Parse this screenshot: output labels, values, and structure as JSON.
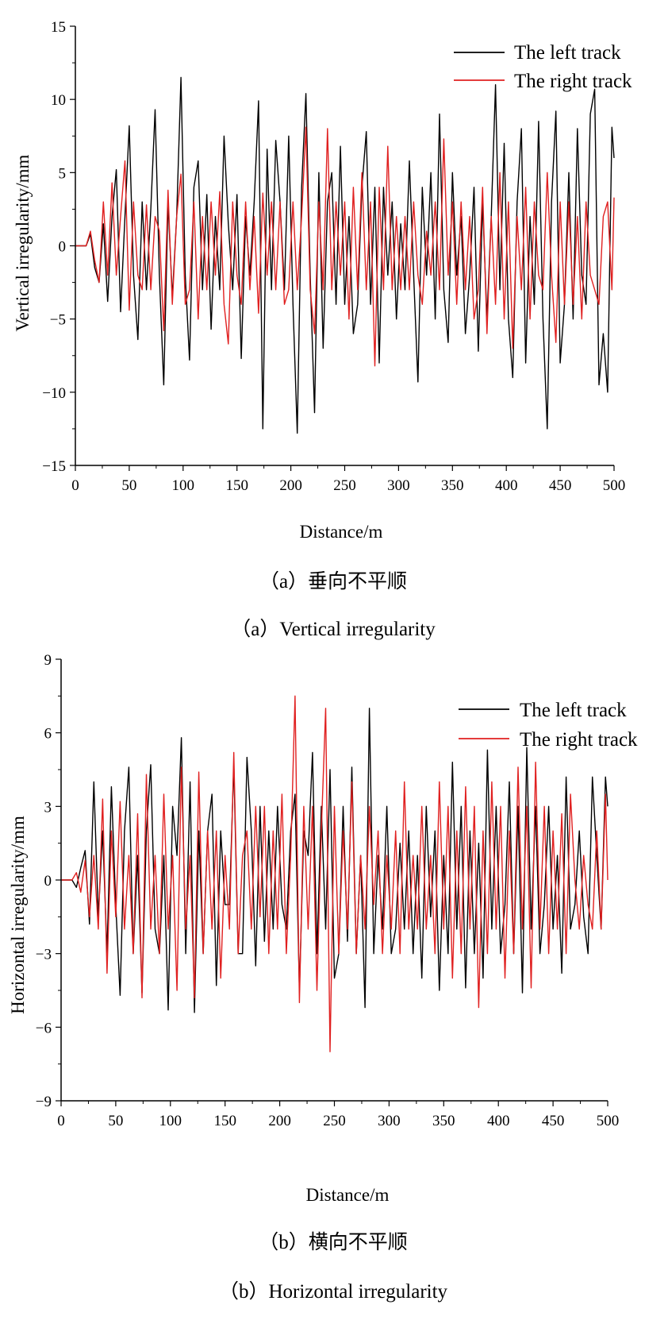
{
  "chart_data": [
    {
      "type": "line",
      "xlabel": "Distance/m",
      "ylabel": "Vertical irregularity/mm",
      "xlim": [
        0,
        500
      ],
      "ylim": [
        -15,
        15
      ],
      "xticks": [
        0,
        50,
        100,
        150,
        200,
        250,
        300,
        350,
        400,
        450,
        500
      ],
      "yticks": [
        -15,
        -10,
        -5,
        0,
        5,
        10,
        15
      ],
      "xtick_labels": [
        "0",
        "50",
        "100",
        "150",
        "200",
        "250",
        "300",
        "350",
        "400",
        "450",
        "500"
      ],
      "ytick_labels": [
        "−15",
        "−10",
        "−5",
        "0",
        "5",
        "10",
        "15"
      ],
      "grid": false,
      "legend_position": "top-right",
      "caption_cn": "（a）垂向不平顺",
      "caption_en": "（a）Vertical irregularity",
      "series": [
        {
          "name": "The left track",
          "color": "#000000",
          "x": [
            0,
            10,
            14,
            18,
            22,
            26,
            30,
            34,
            38,
            42,
            46,
            50,
            54,
            58,
            62,
            66,
            70,
            74,
            78,
            82,
            86,
            90,
            94,
            98,
            102,
            106,
            110,
            114,
            118,
            122,
            126,
            130,
            134,
            138,
            142,
            146,
            150,
            154,
            158,
            162,
            166,
            170,
            174,
            178,
            182,
            186,
            190,
            194,
            198,
            202,
            206,
            210,
            214,
            218,
            222,
            226,
            230,
            234,
            238,
            242,
            246,
            250,
            254,
            258,
            262,
            266,
            270,
            274,
            278,
            282,
            286,
            290,
            294,
            298,
            302,
            306,
            310,
            314,
            318,
            322,
            326,
            330,
            334,
            338,
            342,
            346,
            350,
            354,
            358,
            362,
            366,
            370,
            374,
            378,
            382,
            386,
            390,
            394,
            398,
            402,
            406,
            410,
            414,
            418,
            422,
            426,
            430,
            434,
            438,
            442,
            446,
            450,
            454,
            458,
            462,
            466,
            470,
            474,
            478,
            482,
            486,
            490,
            494,
            498,
            500
          ],
          "y": [
            0,
            0,
            0.8,
            -1.5,
            -2.5,
            1.5,
            -3.8,
            2,
            5.2,
            -4.5,
            2,
            8.2,
            -2,
            -6.4,
            3,
            -3,
            2.5,
            9.3,
            -2,
            -9.5,
            3,
            -3.5,
            2,
            11.5,
            -2,
            -7.8,
            4,
            5.8,
            -3,
            3.5,
            -5.7,
            2,
            -3,
            7.5,
            1.5,
            -3,
            3.5,
            -7.7,
            2,
            -2,
            3,
            9.9,
            -12.5,
            6.6,
            -3,
            7.2,
            3,
            -3,
            7.5,
            -4,
            -12.8,
            4,
            10.4,
            -2,
            -11.4,
            5,
            -7,
            3,
            5,
            -4,
            6.8,
            -4,
            2,
            -6,
            -4,
            4,
            7.8,
            -4,
            4,
            -8,
            4,
            -2,
            3,
            -5,
            1.5,
            -3,
            5.8,
            -2,
            -9.3,
            4,
            -2,
            5,
            -5,
            9,
            -3,
            -6.6,
            5,
            -2,
            2,
            -6,
            -2,
            4,
            -7.2,
            3,
            -5,
            2,
            11,
            -3,
            7,
            -5,
            -9,
            3,
            8,
            -8,
            2,
            -4,
            8.5,
            -5,
            -12.5,
            3,
            9.2,
            -8,
            -4,
            5,
            -5,
            8,
            -2,
            -4,
            9,
            10.7,
            -9.5,
            -6,
            -10,
            8.1,
            6
          ]
        },
        {
          "name": "The right track",
          "color": "#e02020",
          "x": [
            0,
            10,
            14,
            18,
            22,
            26,
            30,
            34,
            38,
            42,
            46,
            50,
            54,
            58,
            62,
            66,
            70,
            74,
            78,
            82,
            86,
            90,
            94,
            98,
            102,
            106,
            110,
            114,
            118,
            122,
            126,
            130,
            134,
            138,
            142,
            146,
            150,
            154,
            158,
            162,
            166,
            170,
            174,
            178,
            182,
            186,
            190,
            194,
            198,
            202,
            206,
            210,
            214,
            218,
            222,
            226,
            230,
            234,
            238,
            242,
            246,
            250,
            254,
            258,
            262,
            266,
            270,
            274,
            278,
            282,
            286,
            290,
            294,
            298,
            302,
            306,
            310,
            314,
            318,
            322,
            326,
            330,
            334,
            338,
            342,
            346,
            350,
            354,
            358,
            362,
            366,
            370,
            374,
            378,
            382,
            386,
            390,
            394,
            398,
            402,
            406,
            410,
            414,
            418,
            422,
            426,
            430,
            434,
            438,
            442,
            446,
            450,
            454,
            458,
            462,
            466,
            470,
            474,
            478,
            482,
            486,
            490,
            494,
            498,
            500
          ],
          "y": [
            0,
            0,
            1,
            -1,
            -2.5,
            3,
            -2,
            4.3,
            -2,
            2,
            5.8,
            -4.4,
            3,
            -2,
            -3,
            2.8,
            -3,
            2,
            1,
            -5.8,
            3.8,
            -4,
            2,
            4.9,
            -4,
            -3,
            3,
            -5,
            2,
            -3,
            3,
            -2,
            3.7,
            -4,
            -6.7,
            3,
            -2,
            -4,
            3,
            -3,
            2,
            -4.6,
            3.6,
            -2,
            3,
            -3,
            3,
            -4,
            -3,
            3,
            -3,
            2,
            8.1,
            -3,
            -6,
            3,
            -3,
            8,
            -3,
            3,
            -2,
            3,
            -5,
            4,
            -3,
            5,
            -3,
            3,
            -8.2,
            4,
            -3,
            6.8,
            -3,
            2,
            -3,
            2,
            -3,
            3,
            -2,
            -4,
            1,
            -2,
            3,
            -3,
            7.3,
            -2,
            3,
            -4,
            3,
            -3,
            2,
            -5,
            -3,
            4,
            -6,
            2,
            -4,
            5,
            -5,
            3,
            -7,
            2,
            -3,
            4,
            -5,
            3,
            -2,
            -3,
            5,
            -2,
            -6.6,
            3,
            -4,
            3,
            -4,
            2,
            -5,
            3,
            -2,
            -3,
            -4,
            2,
            3,
            -3,
            3.3
          ]
        }
      ]
    },
    {
      "type": "line",
      "xlabel": "Distance/m",
      "ylabel": "Horizontal irregularity/mm",
      "xlim": [
        0,
        500
      ],
      "ylim": [
        -9,
        9
      ],
      "xticks": [
        0,
        50,
        100,
        150,
        200,
        250,
        300,
        350,
        400,
        450,
        500
      ],
      "yticks": [
        -9,
        -6,
        -3,
        0,
        3,
        6,
        9
      ],
      "xtick_labels": [
        "0",
        "50",
        "100",
        "150",
        "200",
        "250",
        "300",
        "350",
        "400",
        "450",
        "500"
      ],
      "ytick_labels": [
        "−9",
        "−6",
        "−3",
        "0",
        "3",
        "6",
        "9"
      ],
      "grid": false,
      "legend_position": "top-right",
      "caption_cn": "（b）横向不平顺",
      "caption_en": "（b）Horizontal irregularity",
      "series": [
        {
          "name": "The left track",
          "color": "#000000",
          "x": [
            0,
            10,
            14,
            18,
            22,
            26,
            30,
            34,
            38,
            42,
            46,
            50,
            54,
            58,
            62,
            66,
            70,
            74,
            78,
            82,
            86,
            90,
            94,
            98,
            102,
            106,
            110,
            114,
            118,
            122,
            126,
            130,
            134,
            138,
            142,
            146,
            150,
            154,
            158,
            162,
            166,
            170,
            174,
            178,
            182,
            186,
            190,
            194,
            198,
            202,
            206,
            210,
            214,
            218,
            222,
            226,
            230,
            234,
            238,
            242,
            246,
            250,
            254,
            258,
            262,
            266,
            270,
            274,
            278,
            282,
            286,
            290,
            294,
            298,
            302,
            306,
            310,
            314,
            318,
            322,
            326,
            330,
            334,
            338,
            342,
            346,
            350,
            354,
            358,
            362,
            366,
            370,
            374,
            378,
            382,
            386,
            390,
            394,
            398,
            402,
            406,
            410,
            414,
            418,
            422,
            426,
            430,
            434,
            438,
            442,
            446,
            450,
            454,
            458,
            462,
            466,
            470,
            474,
            478,
            482,
            486,
            490,
            494,
            498,
            500
          ],
          "y": [
            0,
            0,
            -0.3,
            0.5,
            1.2,
            -1.8,
            4,
            -1.5,
            2,
            -3,
            3.8,
            -1,
            -4.7,
            2,
            4.6,
            -3,
            1,
            -4.6,
            2,
            4.7,
            -2,
            -3,
            1,
            -5.3,
            3,
            1,
            5.8,
            -3,
            4,
            -5.4,
            2,
            -3,
            2,
            3.5,
            -4.3,
            2,
            -1,
            -1,
            4.7,
            -3,
            -3,
            5,
            2,
            -3.5,
            3,
            -2.5,
            2,
            -2,
            3,
            -1,
            -2,
            2,
            3.5,
            -4.5,
            2,
            1,
            5.2,
            -3,
            3,
            -2,
            4.5,
            -4,
            -3,
            3,
            -2.5,
            4.6,
            -3,
            1,
            -5.2,
            7,
            -3,
            1,
            -2,
            3,
            -3,
            -2,
            1.5,
            -2,
            2,
            -3,
            1,
            -4,
            3,
            -1.5,
            2,
            -4.5,
            1,
            -3,
            4.8,
            -2,
            3,
            -4.4,
            2,
            -3,
            1.5,
            -4,
            5.3,
            -2,
            3,
            -3,
            -1,
            4,
            -3,
            3,
            -4.6,
            5.4,
            -2,
            3,
            -3,
            -1,
            3,
            -2,
            1,
            -3.8,
            4.2,
            -2,
            -1,
            2,
            -1.5,
            -3,
            4.2,
            1,
            -2,
            4.2,
            3
          ]
        },
        {
          "name": "The right track",
          "color": "#e02020",
          "x": [
            0,
            10,
            14,
            18,
            22,
            26,
            30,
            34,
            38,
            42,
            46,
            50,
            54,
            58,
            62,
            66,
            70,
            74,
            78,
            82,
            86,
            90,
            94,
            98,
            102,
            106,
            110,
            114,
            118,
            122,
            126,
            130,
            134,
            138,
            142,
            146,
            150,
            154,
            158,
            162,
            166,
            170,
            174,
            178,
            182,
            186,
            190,
            194,
            198,
            202,
            206,
            210,
            214,
            218,
            222,
            226,
            230,
            234,
            238,
            242,
            246,
            250,
            254,
            258,
            262,
            266,
            270,
            274,
            278,
            282,
            286,
            290,
            294,
            298,
            302,
            306,
            310,
            314,
            318,
            322,
            326,
            330,
            334,
            338,
            342,
            346,
            350,
            354,
            358,
            362,
            366,
            370,
            374,
            378,
            382,
            386,
            390,
            394,
            398,
            402,
            406,
            410,
            414,
            418,
            422,
            426,
            430,
            434,
            438,
            442,
            446,
            450,
            454,
            458,
            462,
            466,
            470,
            474,
            478,
            482,
            486,
            490,
            494,
            498,
            500
          ],
          "y": [
            0,
            0,
            0.3,
            -0.5,
            0.8,
            -1.5,
            1,
            -2,
            3.3,
            -3.8,
            2,
            -1.5,
            3.2,
            -2,
            1,
            -3,
            2.7,
            -4.8,
            4.3,
            -2,
            1,
            -3,
            3.5,
            -2,
            1,
            -4.5,
            4.6,
            -2,
            1,
            -4.8,
            4.4,
            -3,
            2,
            -2,
            2,
            -4,
            1,
            -2,
            5.2,
            -3,
            1,
            2,
            -2,
            3,
            -1.5,
            3,
            -3,
            2,
            -2,
            3.5,
            -3,
            1,
            7.5,
            -5,
            3,
            -2,
            3,
            -4.5,
            2,
            7,
            -7,
            3,
            -3,
            2,
            -2,
            4,
            -3,
            1,
            -2,
            3,
            -1,
            2,
            -3,
            1,
            -2,
            2,
            -3,
            4,
            -2,
            1,
            -2,
            3,
            -2,
            1,
            -3,
            4,
            -2,
            3,
            -4,
            2,
            -3,
            3.8,
            -2,
            3,
            -5.2,
            2,
            -3,
            4,
            -2,
            3,
            -4,
            2,
            -3,
            4.6,
            -2,
            3,
            -4.4,
            4.8,
            -2,
            3,
            -3,
            2,
            -2,
            2.7,
            -3,
            3.5,
            0,
            -2,
            1,
            -1,
            -2,
            2,
            -2,
            3.5,
            0
          ]
        }
      ]
    }
  ]
}
